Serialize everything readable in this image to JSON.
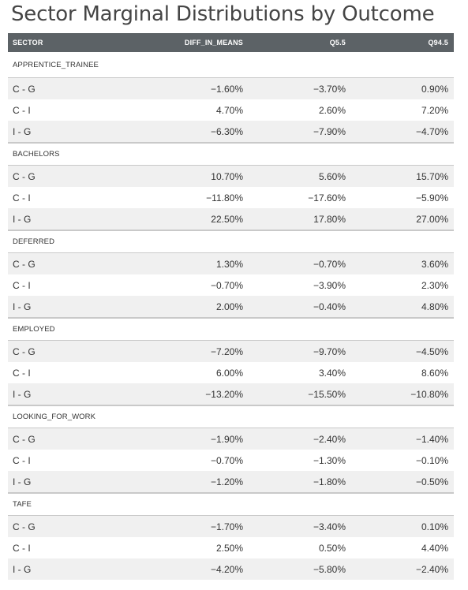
{
  "title": "Sector Marginal Distributions by Outcome",
  "columns": {
    "sector": "SECTOR",
    "diff": "DIFF_IN_MEANS",
    "q5": "Q5.5",
    "q94": "Q94.5"
  },
  "groups": [
    {
      "name": "APPRENTICE_TRAINEE",
      "rows": [
        {
          "label": "C - G",
          "diff": "−1.60%",
          "q5": "−3.70%",
          "q94": "0.90%"
        },
        {
          "label": "C - I",
          "diff": "4.70%",
          "q5": "2.60%",
          "q94": "7.20%"
        },
        {
          "label": "I - G",
          "diff": "−6.30%",
          "q5": "−7.90%",
          "q94": "−4.70%"
        }
      ]
    },
    {
      "name": "BACHELORS",
      "rows": [
        {
          "label": "C - G",
          "diff": "10.70%",
          "q5": "5.60%",
          "q94": "15.70%"
        },
        {
          "label": "C - I",
          "diff": "−11.80%",
          "q5": "−17.60%",
          "q94": "−5.90%"
        },
        {
          "label": "I - G",
          "diff": "22.50%",
          "q5": "17.80%",
          "q94": "27.00%"
        }
      ]
    },
    {
      "name": "DEFERRED",
      "rows": [
        {
          "label": "C - G",
          "diff": "1.30%",
          "q5": "−0.70%",
          "q94": "3.60%"
        },
        {
          "label": "C - I",
          "diff": "−0.70%",
          "q5": "−3.90%",
          "q94": "2.30%"
        },
        {
          "label": "I - G",
          "diff": "2.00%",
          "q5": "−0.40%",
          "q94": "4.80%"
        }
      ]
    },
    {
      "name": "EMPLOYED",
      "rows": [
        {
          "label": "C - G",
          "diff": "−7.20%",
          "q5": "−9.70%",
          "q94": "−4.50%"
        },
        {
          "label": "C - I",
          "diff": "6.00%",
          "q5": "3.40%",
          "q94": "8.60%"
        },
        {
          "label": "I - G",
          "diff": "−13.20%",
          "q5": "−15.50%",
          "q94": "−10.80%"
        }
      ]
    },
    {
      "name": "LOOKING_FOR_WORK",
      "rows": [
        {
          "label": "C - G",
          "diff": "−1.90%",
          "q5": "−2.40%",
          "q94": "−1.40%"
        },
        {
          "label": "C - I",
          "diff": "−0.70%",
          "q5": "−1.30%",
          "q94": "−0.10%"
        },
        {
          "label": "I - G",
          "diff": "−1.20%",
          "q5": "−1.80%",
          "q94": "−0.50%"
        }
      ]
    },
    {
      "name": "TAFE",
      "rows": [
        {
          "label": "C - G",
          "diff": "−1.70%",
          "q5": "−3.40%",
          "q94": "0.10%"
        },
        {
          "label": "C - I",
          "diff": "2.50%",
          "q5": "0.50%",
          "q94": "4.40%"
        },
        {
          "label": "I - G",
          "diff": "−4.20%",
          "q5": "−5.80%",
          "q94": "−2.40%"
        }
      ]
    }
  ]
}
